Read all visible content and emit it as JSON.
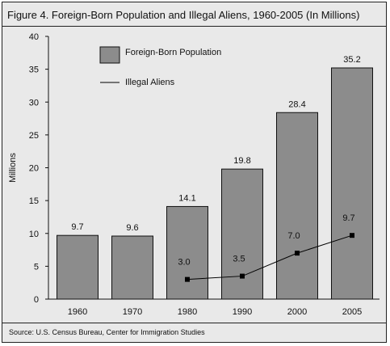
{
  "figure": {
    "title": "Figure 4. Foreign-Born Population and Illegal Aliens, 1960-2005 (In Millions)",
    "source": "Source: U.S. Census Bureau, Center for Immigration Studies"
  },
  "chart_data": {
    "type": "bar",
    "categories": [
      "1960",
      "1970",
      "1980",
      "1990",
      "2000",
      "2005"
    ],
    "series": [
      {
        "name": "Foreign-Born Population",
        "type": "bar",
        "color": "#8c8c8c",
        "values": [
          9.7,
          9.6,
          14.1,
          19.8,
          28.4,
          35.2
        ],
        "labels": [
          "9.7",
          "9.6",
          "14.1",
          "19.8",
          "28.4",
          "35.2"
        ]
      },
      {
        "name": "Illegal Aliens",
        "type": "line",
        "color": "#000000",
        "values": [
          null,
          null,
          3.0,
          3.5,
          7.0,
          9.7
        ],
        "labels": [
          "",
          "",
          "3.0",
          "3.5",
          "7.0",
          "9.7"
        ]
      }
    ],
    "ylabel": "Millions",
    "xlabel": "",
    "ylim": [
      0,
      40
    ],
    "yticks": [
      "0",
      "5",
      "10",
      "15",
      "20",
      "25",
      "30",
      "35",
      "40"
    ],
    "legend_position": "top-left",
    "grid": false
  }
}
